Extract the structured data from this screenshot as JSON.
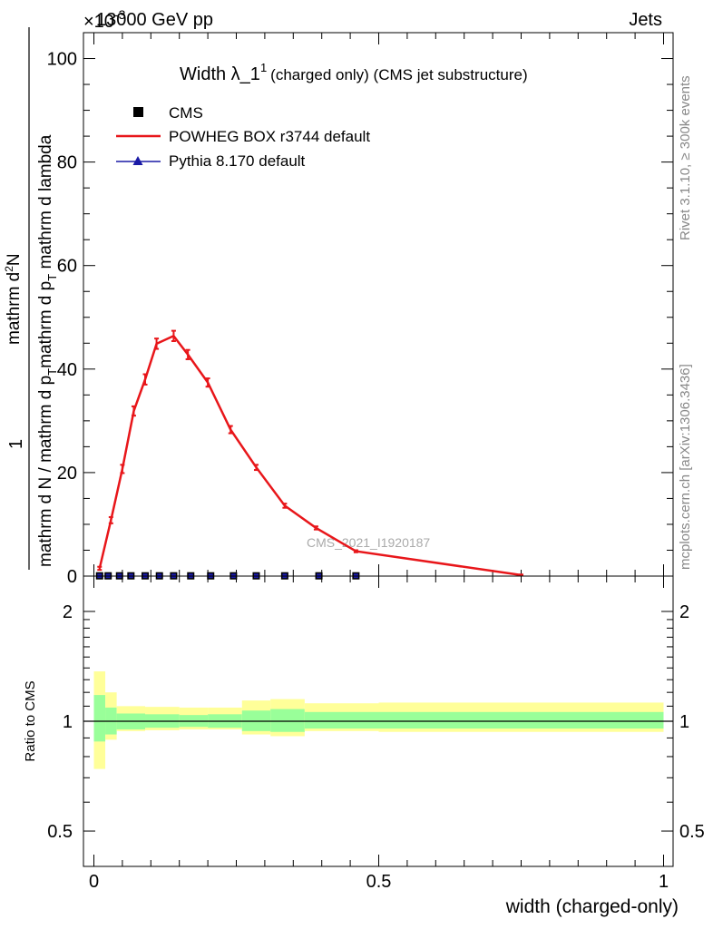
{
  "header": {
    "left": "13000 GeV pp",
    "right": "Jets",
    "exponent": "×10",
    "exponent_power": "-3"
  },
  "side_labels": {
    "rivet": "Rivet 3.1.10, ≥ 300k events",
    "mcplots": "mcplots.cern.ch [arXiv:1306.3436]"
  },
  "main_panel": {
    "title_main": "Width λ_1",
    "title_sup": "1",
    "title_suffix": "(charged only) (CMS jet substructure)",
    "ylabel_prefix": "1",
    "ylabel_numerator": "mathrm d",
    "ylabel_numerator_sup": "2",
    "ylabel_numerator_end": "N",
    "ylabel_denominator": "mathrm d N / mathrm d p",
    "ylabel_denominator_sub": "T",
    "ylabel_denominator_end": "mathrm d p",
    "ylabel_denominator_sub2": "T",
    "ylabel_denominator_end2": " mathrm d lambda",
    "watermark": "CMS_2021_I1920187",
    "legend": [
      {
        "label": "CMS",
        "marker": "square",
        "color": "#000000"
      },
      {
        "label": "POWHEG BOX r3744 default",
        "marker": "line",
        "color": "#e8161a"
      },
      {
        "label": "Pythia 8.170 default",
        "marker": "triangle",
        "color": "#1a1aa6"
      }
    ],
    "yticks": [
      "0",
      "20",
      "40",
      "60",
      "80",
      "100"
    ]
  },
  "ratio_panel": {
    "ylabel": "Ratio to CMS",
    "yticks": [
      "0.5",
      "1",
      "2"
    ],
    "xticks": [
      "0",
      "0.5",
      "1"
    ],
    "xlabel": "width (charged-only)"
  },
  "chart_data": [
    {
      "type": "line",
      "panel": "main",
      "xlim": [
        0,
        1
      ],
      "ylim": [
        0,
        105
      ],
      "series": [
        {
          "name": "CMS",
          "marker": "square",
          "x": [
            0.01,
            0.025,
            0.045,
            0.065,
            0.09,
            0.115,
            0.14,
            0.17,
            0.205,
            0.245,
            0.285,
            0.335,
            0.395,
            0.46
          ],
          "y": [
            0.05,
            0.05,
            0.05,
            0.05,
            0.05,
            0.05,
            0.05,
            0.05,
            0.05,
            0.05,
            0.05,
            0.05,
            0.05,
            0.05
          ]
        },
        {
          "name": "POWHEG BOX r3744 default",
          "x": [
            0.01,
            0.03,
            0.05,
            0.07,
            0.09,
            0.11,
            0.14,
            0.165,
            0.2,
            0.24,
            0.285,
            0.335,
            0.39,
            0.46,
            0.75
          ],
          "y": [
            1.5,
            10.8,
            20.7,
            31.9,
            38.0,
            44.9,
            46.4,
            42.8,
            37.4,
            28.3,
            21.0,
            13.6,
            9.3,
            4.8,
            0.2
          ],
          "err": [
            0.3,
            0.6,
            0.8,
            0.9,
            1.0,
            1.0,
            1.0,
            0.9,
            0.8,
            0.7,
            0.5,
            0.4,
            0.3,
            0.2,
            0.1
          ]
        },
        {
          "name": "Pythia 8.170 default",
          "x": [],
          "y": []
        }
      ]
    },
    {
      "type": "area",
      "panel": "ratio",
      "xlim": [
        0,
        1
      ],
      "ylim": [
        0.4,
        2.5
      ],
      "log_y": true,
      "reference": 1,
      "bins": [
        0,
        0.02,
        0.04,
        0.09,
        0.15,
        0.2,
        0.26,
        0.31,
        0.37,
        0.5,
        1.0
      ],
      "stat_band_low": [
        0.88,
        0.92,
        0.95,
        0.96,
        0.965,
        0.96,
        0.94,
        0.935,
        0.955,
        0.955,
        0.91
      ],
      "stat_band_high": [
        1.18,
        1.09,
        1.05,
        1.045,
        1.04,
        1.045,
        1.07,
        1.08,
        1.06,
        1.06,
        1.11
      ],
      "total_band_low": [
        0.74,
        0.89,
        0.94,
        0.945,
        0.95,
        0.95,
        0.92,
        0.91,
        0.94,
        0.935,
        0.83
      ],
      "total_band_high": [
        1.37,
        1.2,
        1.1,
        1.095,
        1.09,
        1.09,
        1.14,
        1.15,
        1.12,
        1.125,
        1.27
      ]
    }
  ]
}
